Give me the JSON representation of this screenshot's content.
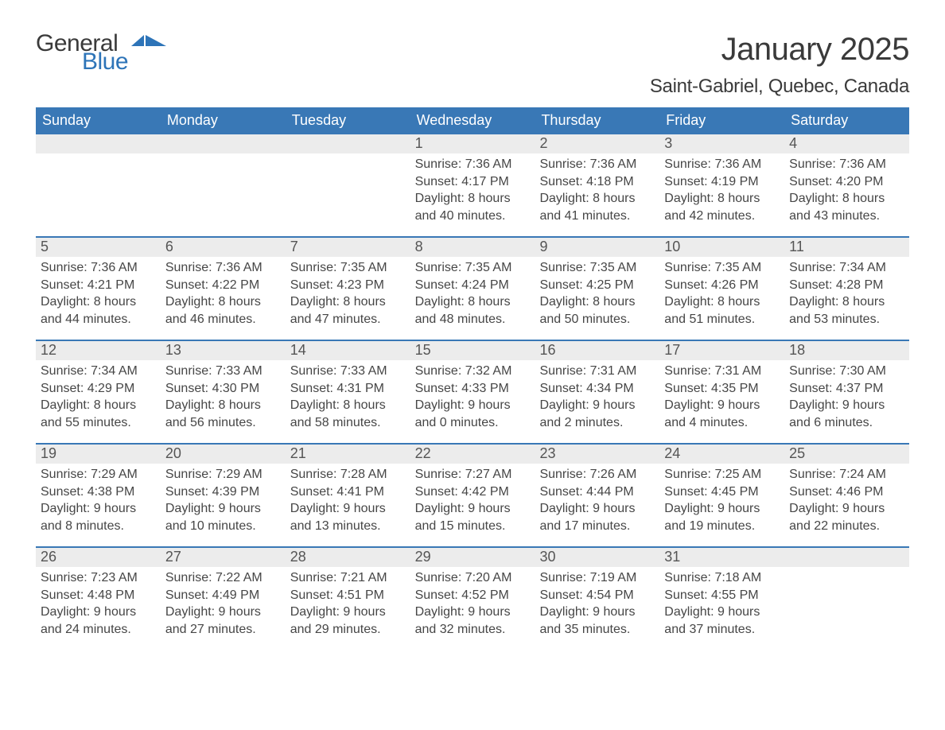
{
  "logo": {
    "word1": "General",
    "word2": "Blue"
  },
  "title": "January 2025",
  "location": "Saint-Gabriel, Quebec, Canada",
  "colors": {
    "header_bg": "#3978b6",
    "header_text": "#ffffff",
    "daynum_bg": "#ececec",
    "rule": "#3978b6",
    "body_text": "#464646",
    "logo_blue": "#2d74b8"
  },
  "days_of_week": [
    "Sunday",
    "Monday",
    "Tuesday",
    "Wednesday",
    "Thursday",
    "Friday",
    "Saturday"
  ],
  "weeks": [
    [
      {
        "n": "",
        "sunrise": "",
        "sunset": "",
        "daylight": ""
      },
      {
        "n": "",
        "sunrise": "",
        "sunset": "",
        "daylight": ""
      },
      {
        "n": "",
        "sunrise": "",
        "sunset": "",
        "daylight": ""
      },
      {
        "n": "1",
        "sunrise": "Sunrise: 7:36 AM",
        "sunset": "Sunset: 4:17 PM",
        "daylight": "Daylight: 8 hours and 40 minutes."
      },
      {
        "n": "2",
        "sunrise": "Sunrise: 7:36 AM",
        "sunset": "Sunset: 4:18 PM",
        "daylight": "Daylight: 8 hours and 41 minutes."
      },
      {
        "n": "3",
        "sunrise": "Sunrise: 7:36 AM",
        "sunset": "Sunset: 4:19 PM",
        "daylight": "Daylight: 8 hours and 42 minutes."
      },
      {
        "n": "4",
        "sunrise": "Sunrise: 7:36 AM",
        "sunset": "Sunset: 4:20 PM",
        "daylight": "Daylight: 8 hours and 43 minutes."
      }
    ],
    [
      {
        "n": "5",
        "sunrise": "Sunrise: 7:36 AM",
        "sunset": "Sunset: 4:21 PM",
        "daylight": "Daylight: 8 hours and 44 minutes."
      },
      {
        "n": "6",
        "sunrise": "Sunrise: 7:36 AM",
        "sunset": "Sunset: 4:22 PM",
        "daylight": "Daylight: 8 hours and 46 minutes."
      },
      {
        "n": "7",
        "sunrise": "Sunrise: 7:35 AM",
        "sunset": "Sunset: 4:23 PM",
        "daylight": "Daylight: 8 hours and 47 minutes."
      },
      {
        "n": "8",
        "sunrise": "Sunrise: 7:35 AM",
        "sunset": "Sunset: 4:24 PM",
        "daylight": "Daylight: 8 hours and 48 minutes."
      },
      {
        "n": "9",
        "sunrise": "Sunrise: 7:35 AM",
        "sunset": "Sunset: 4:25 PM",
        "daylight": "Daylight: 8 hours and 50 minutes."
      },
      {
        "n": "10",
        "sunrise": "Sunrise: 7:35 AM",
        "sunset": "Sunset: 4:26 PM",
        "daylight": "Daylight: 8 hours and 51 minutes."
      },
      {
        "n": "11",
        "sunrise": "Sunrise: 7:34 AM",
        "sunset": "Sunset: 4:28 PM",
        "daylight": "Daylight: 8 hours and 53 minutes."
      }
    ],
    [
      {
        "n": "12",
        "sunrise": "Sunrise: 7:34 AM",
        "sunset": "Sunset: 4:29 PM",
        "daylight": "Daylight: 8 hours and 55 minutes."
      },
      {
        "n": "13",
        "sunrise": "Sunrise: 7:33 AM",
        "sunset": "Sunset: 4:30 PM",
        "daylight": "Daylight: 8 hours and 56 minutes."
      },
      {
        "n": "14",
        "sunrise": "Sunrise: 7:33 AM",
        "sunset": "Sunset: 4:31 PM",
        "daylight": "Daylight: 8 hours and 58 minutes."
      },
      {
        "n": "15",
        "sunrise": "Sunrise: 7:32 AM",
        "sunset": "Sunset: 4:33 PM",
        "daylight": "Daylight: 9 hours and 0 minutes."
      },
      {
        "n": "16",
        "sunrise": "Sunrise: 7:31 AM",
        "sunset": "Sunset: 4:34 PM",
        "daylight": "Daylight: 9 hours and 2 minutes."
      },
      {
        "n": "17",
        "sunrise": "Sunrise: 7:31 AM",
        "sunset": "Sunset: 4:35 PM",
        "daylight": "Daylight: 9 hours and 4 minutes."
      },
      {
        "n": "18",
        "sunrise": "Sunrise: 7:30 AM",
        "sunset": "Sunset: 4:37 PM",
        "daylight": "Daylight: 9 hours and 6 minutes."
      }
    ],
    [
      {
        "n": "19",
        "sunrise": "Sunrise: 7:29 AM",
        "sunset": "Sunset: 4:38 PM",
        "daylight": "Daylight: 9 hours and 8 minutes."
      },
      {
        "n": "20",
        "sunrise": "Sunrise: 7:29 AM",
        "sunset": "Sunset: 4:39 PM",
        "daylight": "Daylight: 9 hours and 10 minutes."
      },
      {
        "n": "21",
        "sunrise": "Sunrise: 7:28 AM",
        "sunset": "Sunset: 4:41 PM",
        "daylight": "Daylight: 9 hours and 13 minutes."
      },
      {
        "n": "22",
        "sunrise": "Sunrise: 7:27 AM",
        "sunset": "Sunset: 4:42 PM",
        "daylight": "Daylight: 9 hours and 15 minutes."
      },
      {
        "n": "23",
        "sunrise": "Sunrise: 7:26 AM",
        "sunset": "Sunset: 4:44 PM",
        "daylight": "Daylight: 9 hours and 17 minutes."
      },
      {
        "n": "24",
        "sunrise": "Sunrise: 7:25 AM",
        "sunset": "Sunset: 4:45 PM",
        "daylight": "Daylight: 9 hours and 19 minutes."
      },
      {
        "n": "25",
        "sunrise": "Sunrise: 7:24 AM",
        "sunset": "Sunset: 4:46 PM",
        "daylight": "Daylight: 9 hours and 22 minutes."
      }
    ],
    [
      {
        "n": "26",
        "sunrise": "Sunrise: 7:23 AM",
        "sunset": "Sunset: 4:48 PM",
        "daylight": "Daylight: 9 hours and 24 minutes."
      },
      {
        "n": "27",
        "sunrise": "Sunrise: 7:22 AM",
        "sunset": "Sunset: 4:49 PM",
        "daylight": "Daylight: 9 hours and 27 minutes."
      },
      {
        "n": "28",
        "sunrise": "Sunrise: 7:21 AM",
        "sunset": "Sunset: 4:51 PM",
        "daylight": "Daylight: 9 hours and 29 minutes."
      },
      {
        "n": "29",
        "sunrise": "Sunrise: 7:20 AM",
        "sunset": "Sunset: 4:52 PM",
        "daylight": "Daylight: 9 hours and 32 minutes."
      },
      {
        "n": "30",
        "sunrise": "Sunrise: 7:19 AM",
        "sunset": "Sunset: 4:54 PM",
        "daylight": "Daylight: 9 hours and 35 minutes."
      },
      {
        "n": "31",
        "sunrise": "Sunrise: 7:18 AM",
        "sunset": "Sunset: 4:55 PM",
        "daylight": "Daylight: 9 hours and 37 minutes."
      },
      {
        "n": "",
        "sunrise": "",
        "sunset": "",
        "daylight": ""
      }
    ]
  ]
}
